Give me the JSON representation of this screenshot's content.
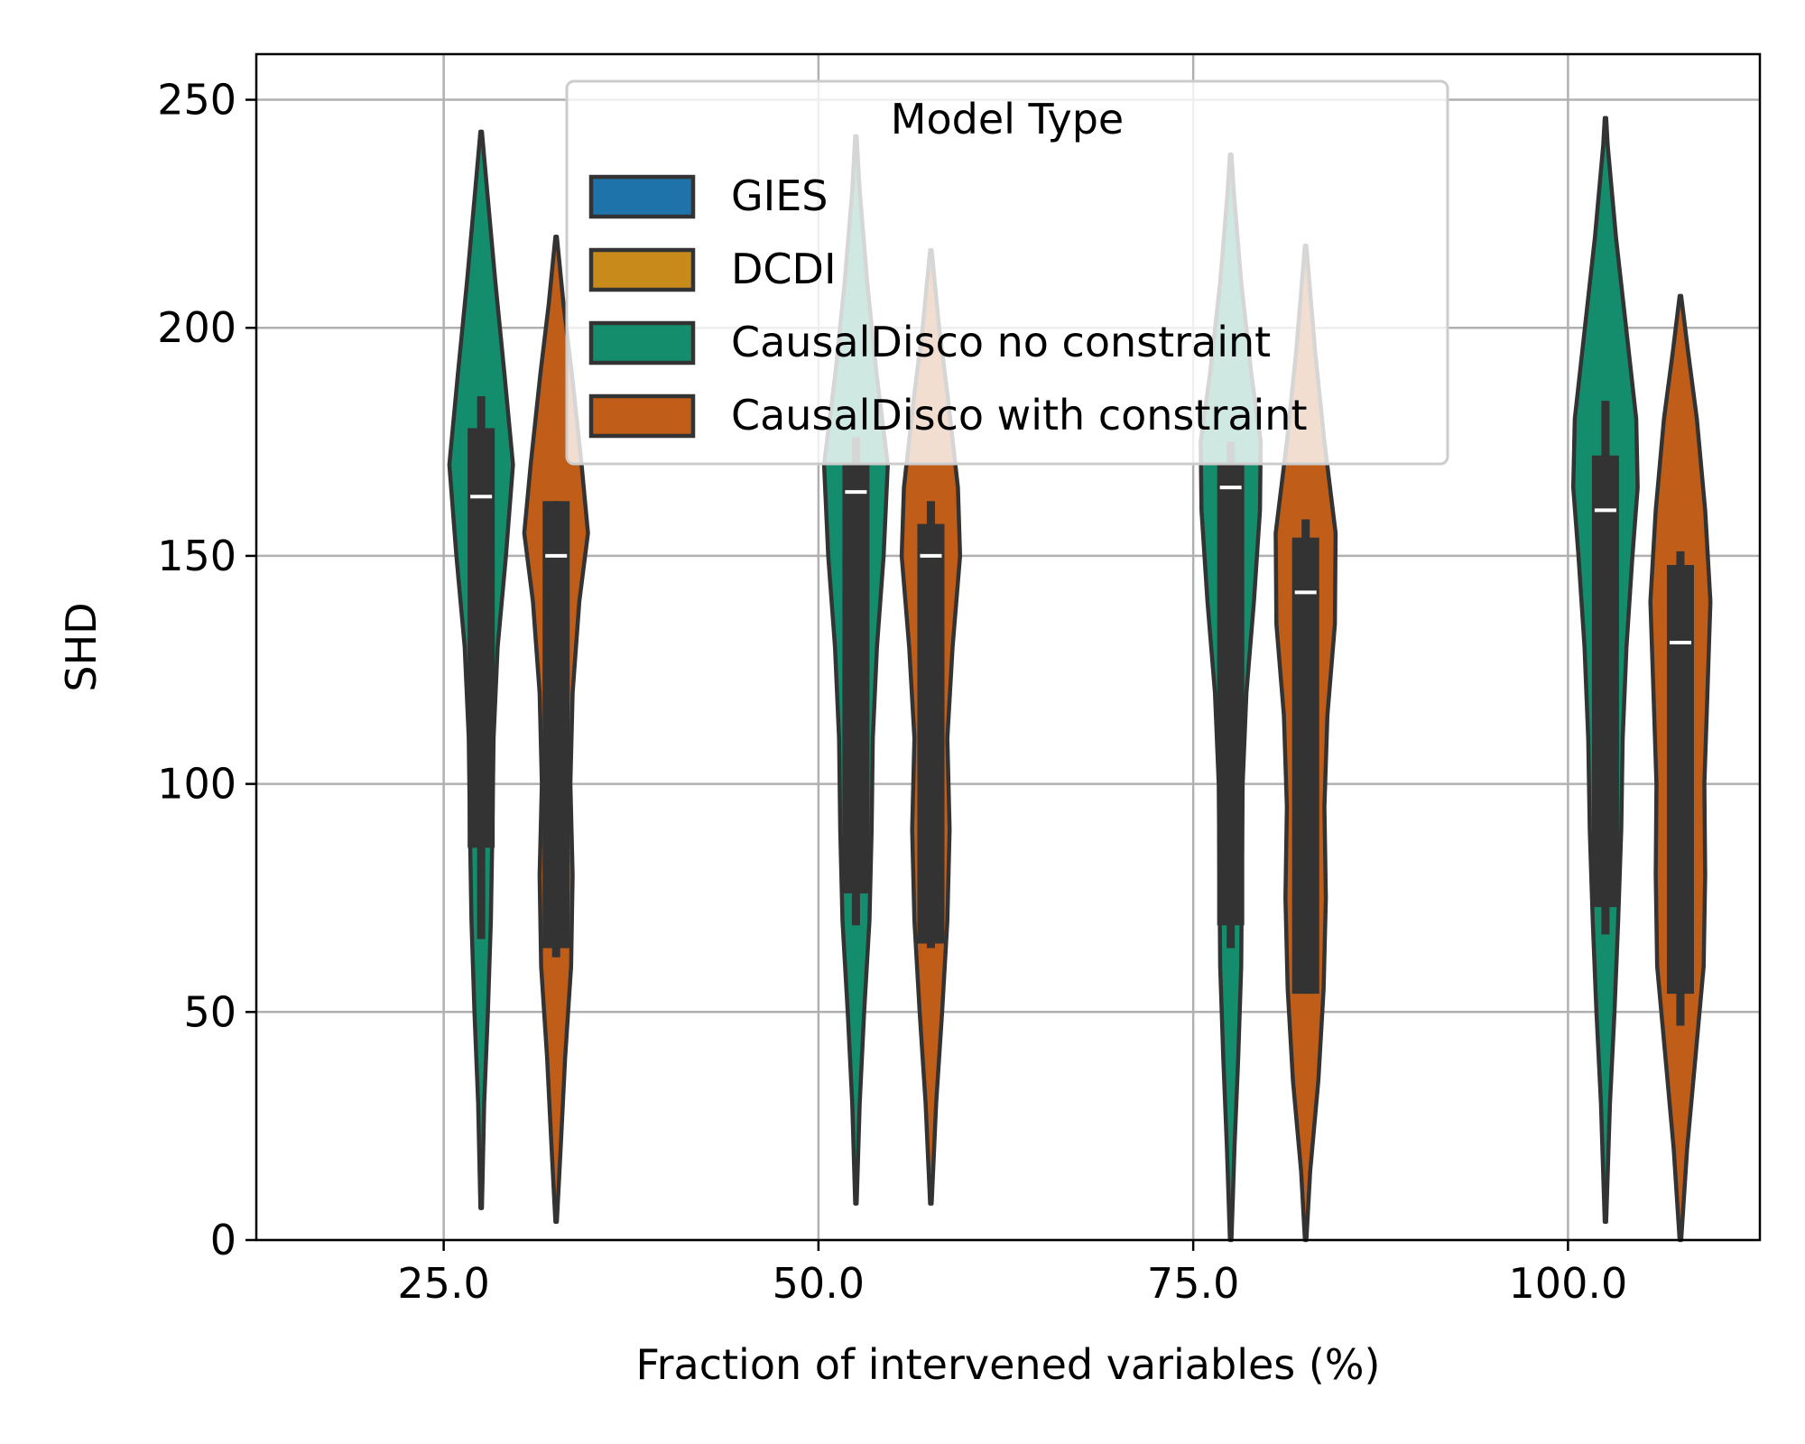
{
  "chart_data": {
    "type": "violin",
    "title": "",
    "xlabel": "Fraction of intervened variables (%)",
    "ylabel": "SHD",
    "categories": [
      "25.0",
      "50.0",
      "75.0",
      "100.0"
    ],
    "x_values": [
      25.0,
      50.0,
      75.0,
      100.0
    ],
    "xlim": [
      12.5,
      112.8
    ],
    "ylim": [
      0,
      260
    ],
    "yticks": [
      0,
      50,
      100,
      150,
      200,
      250
    ],
    "grid": true,
    "legend": {
      "title": "Model Type",
      "position": "top-center",
      "entries": [
        "GIES",
        "DCDI",
        "CausalDisco no constraint",
        "CausalDisco with constraint"
      ]
    },
    "series": [
      {
        "name": "CausalDisco no constraint",
        "offset": 2.5,
        "groups": [
          {
            "x": 25.0,
            "min": 7,
            "max": 243,
            "q1": 86,
            "median": 163,
            "q3": 178,
            "whisker_low": 66,
            "whisker_high": 185,
            "profile": [
              [
                7,
                0.02
              ],
              [
                30,
                0.08
              ],
              [
                50,
                0.18
              ],
              [
                70,
                0.26
              ],
              [
                90,
                0.3
              ],
              [
                110,
                0.33
              ],
              [
                130,
                0.44
              ],
              [
                150,
                0.66
              ],
              [
                170,
                0.85
              ],
              [
                190,
                0.62
              ],
              [
                210,
                0.38
              ],
              [
                230,
                0.16
              ],
              [
                243,
                0.02
              ]
            ]
          },
          {
            "x": 50.0,
            "min": 8,
            "max": 242,
            "q1": 76,
            "median": 164,
            "q3": 170,
            "whisker_low": 69,
            "whisker_high": 176,
            "profile": [
              [
                8,
                0.02
              ],
              [
                30,
                0.1
              ],
              [
                50,
                0.22
              ],
              [
                70,
                0.36
              ],
              [
                90,
                0.42
              ],
              [
                110,
                0.45
              ],
              [
                130,
                0.56
              ],
              [
                150,
                0.74
              ],
              [
                170,
                0.85
              ],
              [
                190,
                0.55
              ],
              [
                210,
                0.3
              ],
              [
                230,
                0.1
              ],
              [
                242,
                0.02
              ]
            ]
          },
          {
            "x": 75.0,
            "min": 0,
            "max": 238,
            "q1": 69,
            "median": 165,
            "q3": 170,
            "whisker_low": 64,
            "whisker_high": 175,
            "profile": [
              [
                0,
                0.02
              ],
              [
                20,
                0.1
              ],
              [
                40,
                0.2
              ],
              [
                60,
                0.28
              ],
              [
                80,
                0.3
              ],
              [
                100,
                0.32
              ],
              [
                120,
                0.42
              ],
              [
                140,
                0.62
              ],
              [
                160,
                0.78
              ],
              [
                175,
                0.8
              ],
              [
                190,
                0.55
              ],
              [
                210,
                0.28
              ],
              [
                230,
                0.08
              ],
              [
                238,
                0.02
              ]
            ]
          },
          {
            "x": 100.0,
            "min": 4,
            "max": 246,
            "q1": 73,
            "median": 160,
            "q3": 172,
            "whisker_low": 67,
            "whisker_high": 184,
            "profile": [
              [
                4,
                0.02
              ],
              [
                30,
                0.12
              ],
              [
                50,
                0.24
              ],
              [
                70,
                0.34
              ],
              [
                90,
                0.42
              ],
              [
                110,
                0.46
              ],
              [
                130,
                0.56
              ],
              [
                150,
                0.72
              ],
              [
                165,
                0.86
              ],
              [
                180,
                0.82
              ],
              [
                200,
                0.55
              ],
              [
                220,
                0.28
              ],
              [
                240,
                0.06
              ],
              [
                246,
                0.02
              ]
            ]
          }
        ]
      },
      {
        "name": "CausalDisco with constraint",
        "offset": 7.5,
        "groups": [
          {
            "x": 25.0,
            "min": 4,
            "max": 220,
            "q1": 64,
            "median": 150,
            "q3": 162,
            "whisker_low": 62,
            "whisker_high": 162,
            "profile": [
              [
                4,
                0.02
              ],
              [
                20,
                0.12
              ],
              [
                40,
                0.24
              ],
              [
                60,
                0.4
              ],
              [
                80,
                0.44
              ],
              [
                100,
                0.38
              ],
              [
                120,
                0.44
              ],
              [
                140,
                0.62
              ],
              [
                155,
                0.85
              ],
              [
                170,
                0.68
              ],
              [
                190,
                0.42
              ],
              [
                205,
                0.2
              ],
              [
                220,
                0.02
              ]
            ]
          },
          {
            "x": 50.0,
            "min": 8,
            "max": 217,
            "q1": 65,
            "median": 150,
            "q3": 157,
            "whisker_low": 64,
            "whisker_high": 162,
            "profile": [
              [
                8,
                0.02
              ],
              [
                30,
                0.14
              ],
              [
                50,
                0.3
              ],
              [
                70,
                0.44
              ],
              [
                90,
                0.5
              ],
              [
                110,
                0.44
              ],
              [
                130,
                0.58
              ],
              [
                150,
                0.78
              ],
              [
                165,
                0.72
              ],
              [
                185,
                0.45
              ],
              [
                200,
                0.22
              ],
              [
                217,
                0.02
              ]
            ]
          },
          {
            "x": 75.0,
            "min": 0,
            "max": 218,
            "q1": 54,
            "median": 142,
            "q3": 154,
            "whisker_low": 54,
            "whisker_high": 158,
            "profile": [
              [
                0,
                0.02
              ],
              [
                15,
                0.12
              ],
              [
                35,
                0.34
              ],
              [
                55,
                0.48
              ],
              [
                75,
                0.54
              ],
              [
                95,
                0.5
              ],
              [
                115,
                0.58
              ],
              [
                135,
                0.78
              ],
              [
                155,
                0.8
              ],
              [
                175,
                0.5
              ],
              [
                195,
                0.25
              ],
              [
                218,
                0.02
              ]
            ]
          },
          {
            "x": 100.0,
            "min": 0,
            "max": 207,
            "q1": 54,
            "median": 131,
            "q3": 148,
            "whisker_low": 47,
            "whisker_high": 151,
            "profile": [
              [
                0,
                0.02
              ],
              [
                20,
                0.18
              ],
              [
                40,
                0.4
              ],
              [
                60,
                0.62
              ],
              [
                80,
                0.66
              ],
              [
                100,
                0.64
              ],
              [
                120,
                0.72
              ],
              [
                140,
                0.8
              ],
              [
                160,
                0.66
              ],
              [
                180,
                0.44
              ],
              [
                195,
                0.2
              ],
              [
                207,
                0.02
              ]
            ]
          }
        ]
      }
    ]
  },
  "colors": {
    "GIES": "#1f73ab",
    "DCDI": "#c98a1c",
    "CausalDisco no constraint": "#138d6c",
    "CausalDisco with constraint": "#bf5d19",
    "outline": "#333333",
    "grid": "#b0b0b0",
    "median": "#ffffff"
  }
}
